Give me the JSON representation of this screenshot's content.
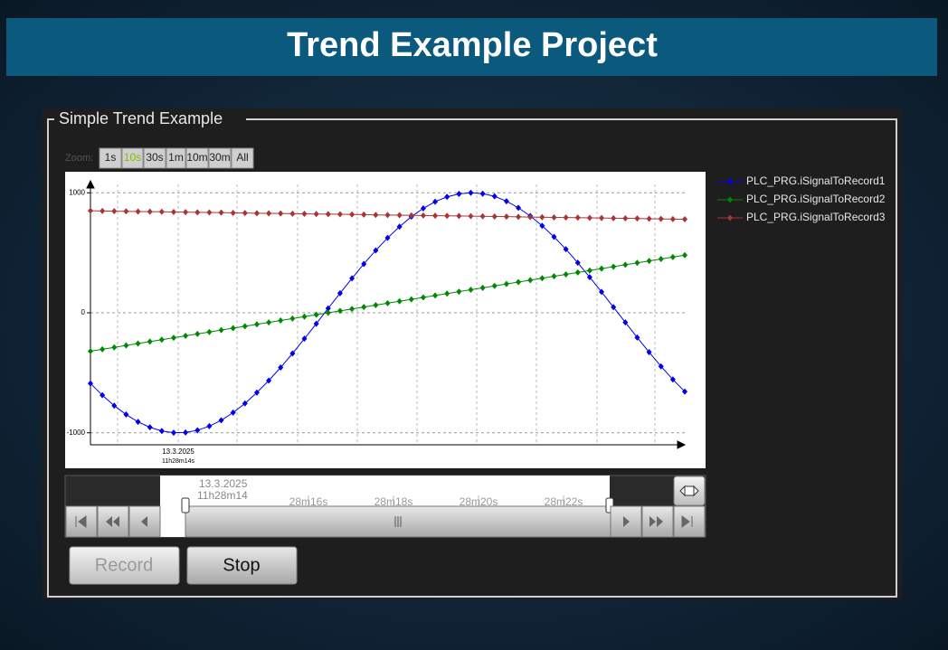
{
  "header": {
    "title": "Trend Example Project"
  },
  "panel": {
    "title": "Simple Trend Example"
  },
  "zoom": {
    "label": "Zoom:",
    "buttons": [
      "1s",
      "10s",
      "30s",
      "1m",
      "10m",
      "30m",
      "All"
    ],
    "active": 1
  },
  "chart_data": {
    "type": "line",
    "ylim": [
      -1100,
      1100
    ],
    "yticks": [
      -1000,
      0,
      1000
    ],
    "grid": true,
    "legend": "right",
    "x_label_date": "13.3.2025",
    "x_label_time": "11h28m14s",
    "series": [
      {
        "name": "PLC_PRG.iSignalToRecord1",
        "color": "#0000ee",
        "values": [
          -589,
          -687,
          -774,
          -848,
          -909,
          -954,
          -985,
          -999,
          -997,
          -979,
          -945,
          -896,
          -832,
          -755,
          -665,
          -565,
          -456,
          -339,
          -216,
          -91,
          37,
          163,
          287,
          407,
          520,
          624,
          718,
          801,
          870,
          926,
          966,
          991,
          1000,
          993,
          971,
          930,
          875,
          807,
          725,
          633,
          530,
          417,
          297,
          174,
          47,
          -80,
          -206,
          -328,
          -446,
          -556,
          -656
        ]
      },
      {
        "name": "PLC_PRG.iSignalToRecord2",
        "color": "#008800",
        "values": [
          -320,
          -304,
          -288,
          -272,
          -256,
          -240,
          -224,
          -208,
          -192,
          -176,
          -160,
          -144,
          -128,
          -112,
          -96,
          -80,
          -64,
          -48,
          -32,
          -16,
          0,
          16,
          32,
          48,
          64,
          80,
          96,
          112,
          128,
          144,
          160,
          176,
          192,
          208,
          224,
          240,
          256,
          272,
          288,
          304,
          320,
          336,
          352,
          368,
          384,
          400,
          416,
          432,
          448,
          464,
          480
        ]
      },
      {
        "name": "PLC_PRG.iSignalToRecord3",
        "color": "#aa3333",
        "values": [
          850,
          849,
          847,
          846,
          844,
          843,
          842,
          840,
          839,
          837,
          836,
          835,
          833,
          832,
          830,
          829,
          828,
          826,
          825,
          823,
          822,
          821,
          819,
          818,
          816,
          815,
          814,
          812,
          811,
          809,
          808,
          807,
          805,
          804,
          802,
          801,
          800,
          798,
          797,
          795,
          794,
          793,
          791,
          790,
          788,
          787,
          786,
          784,
          783,
          781,
          780
        ]
      }
    ]
  },
  "timeline": {
    "date": "13.3.2025",
    "time": "11h28m14",
    "ticks": [
      "28m16s",
      "28m18s",
      "28m20s",
      "28m22s"
    ]
  },
  "buttons": {
    "record": "Record",
    "stop": "Stop"
  }
}
